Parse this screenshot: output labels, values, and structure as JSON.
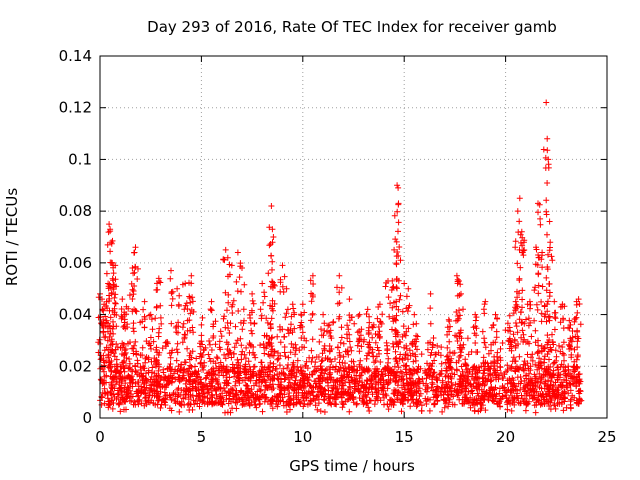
{
  "chart_data": {
    "type": "scatter",
    "title": "Day 293 of 2016, Rate Of TEC Index for receiver gamb",
    "xlabel": "GPS time / hours",
    "ylabel": "ROTI / TECUs",
    "xlim": [
      0,
      25
    ],
    "ylim": [
      0,
      0.14
    ],
    "xticks": [
      0,
      5,
      10,
      15,
      20,
      25
    ],
    "yticks": [
      0,
      0.02,
      0.04,
      0.06,
      0.08,
      0.1,
      0.12,
      0.14
    ],
    "xtick_labels": [
      "0",
      "5",
      "10",
      "15",
      "20",
      "25"
    ],
    "ytick_labels": [
      "0",
      "0.02",
      "0.04",
      "0.06",
      "0.08",
      "0.1",
      "0.12",
      "0.14"
    ],
    "grid": true,
    "marker": "+",
    "color": "#ff0000",
    "data_range_x": [
      0,
      23.75
    ],
    "baseline_band": [
      0.005,
      0.02
    ],
    "series": [
      {
        "name": "ROTI",
        "points": [
          [
            0.0,
            0.048
          ],
          [
            0.1,
            0.046
          ],
          [
            0.2,
            0.044
          ],
          [
            0.4,
            0.052
          ],
          [
            0.45,
            0.075
          ],
          [
            0.5,
            0.073
          ],
          [
            0.55,
            0.068
          ],
          [
            0.6,
            0.06
          ],
          [
            0.65,
            0.059
          ],
          [
            0.75,
            0.059
          ],
          [
            1.1,
            0.046
          ],
          [
            1.3,
            0.043
          ],
          [
            1.6,
            0.058
          ],
          [
            1.7,
            0.064
          ],
          [
            1.75,
            0.066
          ],
          [
            2.2,
            0.045
          ],
          [
            2.5,
            0.04
          ],
          [
            2.8,
            0.043
          ],
          [
            2.9,
            0.054
          ],
          [
            3.5,
            0.057
          ],
          [
            3.8,
            0.05
          ],
          [
            4.2,
            0.052
          ],
          [
            4.4,
            0.047
          ],
          [
            4.5,
            0.055
          ],
          [
            5.0,
            0.036
          ],
          [
            5.5,
            0.045
          ],
          [
            6.2,
            0.065
          ],
          [
            6.3,
            0.062
          ],
          [
            6.5,
            0.059
          ],
          [
            6.8,
            0.064
          ],
          [
            7.0,
            0.058
          ],
          [
            7.5,
            0.048
          ],
          [
            8.0,
            0.052
          ],
          [
            8.3,
            0.056
          ],
          [
            8.45,
            0.082
          ],
          [
            8.5,
            0.073
          ],
          [
            8.55,
            0.07
          ],
          [
            9.0,
            0.059
          ],
          [
            9.2,
            0.05
          ],
          [
            9.5,
            0.044
          ],
          [
            10.0,
            0.044
          ],
          [
            10.5,
            0.055
          ],
          [
            11.0,
            0.04
          ],
          [
            11.3,
            0.036
          ],
          [
            11.8,
            0.055
          ],
          [
            12.3,
            0.046
          ],
          [
            12.8,
            0.04
          ],
          [
            13.2,
            0.042
          ],
          [
            13.5,
            0.036
          ],
          [
            13.8,
            0.044
          ],
          [
            14.2,
            0.053
          ],
          [
            14.5,
            0.065
          ],
          [
            14.6,
            0.045
          ],
          [
            14.65,
            0.09
          ],
          [
            14.7,
            0.089
          ],
          [
            14.72,
            0.083
          ],
          [
            15.0,
            0.052
          ],
          [
            15.2,
            0.05
          ],
          [
            15.5,
            0.04
          ],
          [
            16.3,
            0.048
          ],
          [
            17.2,
            0.038
          ],
          [
            17.6,
            0.055
          ],
          [
            17.7,
            0.053
          ],
          [
            17.8,
            0.048
          ],
          [
            18.5,
            0.04
          ],
          [
            19.0,
            0.045
          ],
          [
            19.5,
            0.04
          ],
          [
            20.2,
            0.035
          ],
          [
            20.5,
            0.045
          ],
          [
            20.6,
            0.08
          ],
          [
            20.7,
            0.085
          ],
          [
            20.8,
            0.072
          ],
          [
            20.9,
            0.068
          ],
          [
            21.2,
            0.045
          ],
          [
            21.5,
            0.066
          ],
          [
            21.6,
            0.083
          ],
          [
            21.7,
            0.077
          ],
          [
            21.8,
            0.064
          ],
          [
            22.0,
            0.122
          ],
          [
            22.05,
            0.108
          ],
          [
            22.1,
            0.1
          ],
          [
            22.2,
            0.068
          ],
          [
            22.4,
            0.045
          ],
          [
            22.8,
            0.044
          ],
          [
            23.2,
            0.036
          ],
          [
            23.5,
            0.045
          ],
          [
            23.6,
            0.046
          ]
        ]
      }
    ]
  }
}
